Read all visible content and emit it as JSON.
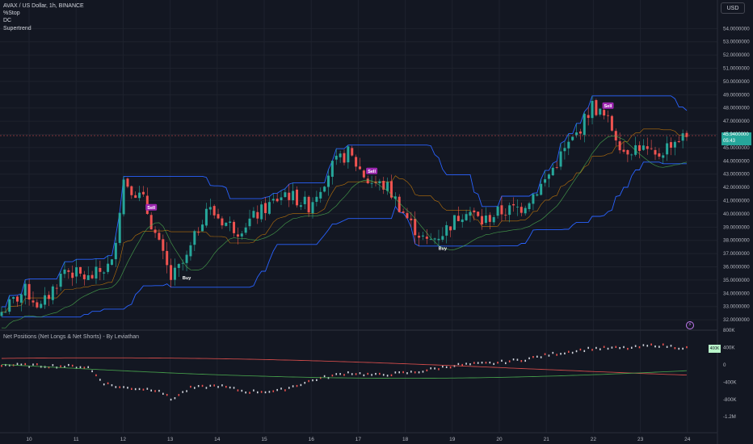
{
  "legend": {
    "symbol_line": "AVAX / US Dollar, 1h, BINANCE",
    "ind1": "%Stop",
    "ind2": "DC",
    "ind3": "Supertrend"
  },
  "currency_label": "USD",
  "price_axis": {
    "ticks": [
      "54.0000000",
      "53.0000000",
      "52.0000000",
      "51.0000000",
      "50.0000000",
      "49.0000000",
      "48.0000000",
      "47.0000000",
      "46.0000000",
      "45.0000000",
      "44.0000000",
      "43.0000000",
      "42.0000000",
      "41.0000000",
      "40.0000000",
      "39.0000000",
      "38.0000000",
      "37.0000000",
      "36.0000000",
      "35.0000000",
      "34.0000000",
      "33.0000000",
      "32.0000000"
    ],
    "current_price": "45.9400000",
    "countdown": "05:43"
  },
  "sub_axis": {
    "title": "Net Positions (Net Longs & Net Shorts) - By Leviathan",
    "ticks": [
      "800K",
      "400K",
      "0",
      "-400K",
      "-800K",
      "-1.2M"
    ],
    "last_label": "400K"
  },
  "time_axis": [
    "10",
    "11",
    "12",
    "13",
    "14",
    "15",
    "16",
    "17",
    "18",
    "19",
    "20",
    "21",
    "22",
    "23",
    "24"
  ],
  "signals": [
    {
      "text": "Sell",
      "kind": "sell"
    },
    {
      "text": "Buy",
      "kind": "buy"
    },
    {
      "text": "Sell",
      "kind": "sell"
    },
    {
      "text": "Buy",
      "kind": "buy"
    },
    {
      "text": "Sell",
      "kind": "sell"
    }
  ],
  "colors": {
    "background": "#131722",
    "up": "#26a69a",
    "down": "#ef5350",
    "dc_band": "#2962ff",
    "supertrend_up": "#4caf50",
    "supertrend_down": "#ff9800",
    "sell_badge": "#9c27b0",
    "net_longs": "#ef5350",
    "net_shorts": "#4caf50"
  },
  "chart_data": {
    "type": "line",
    "ylabel": "",
    "price_ylim": [
      31.5,
      55
    ],
    "anchors_close": [
      [
        0,
        32.6
      ],
      [
        6,
        34.2
      ],
      [
        10,
        32.9
      ],
      [
        16,
        35.8
      ],
      [
        22,
        35.1
      ],
      [
        28,
        36.2
      ],
      [
        31,
        42.6
      ],
      [
        36,
        41.0
      ],
      [
        40,
        37.6
      ],
      [
        43,
        35.1
      ],
      [
        47,
        36.6
      ],
      [
        52,
        40.5
      ],
      [
        56,
        39.5
      ],
      [
        60,
        38.8
      ],
      [
        66,
        40.2
      ],
      [
        72,
        41.6
      ],
      [
        78,
        40.6
      ],
      [
        84,
        43.6
      ],
      [
        88,
        44.6
      ],
      [
        93,
        42.5
      ],
      [
        98,
        42.0
      ],
      [
        104,
        39.2
      ],
      [
        108,
        37.8
      ],
      [
        112,
        38.6
      ],
      [
        118,
        40.4
      ],
      [
        122,
        39.4
      ],
      [
        126,
        40.1
      ],
      [
        132,
        40.5
      ],
      [
        138,
        42.5
      ],
      [
        142,
        44.4
      ],
      [
        146,
        46.0
      ],
      [
        150,
        48.2
      ],
      [
        154,
        47.0
      ],
      [
        158,
        44.8
      ],
      [
        162,
        45.1
      ],
      [
        166,
        44.2
      ],
      [
        170,
        45.4
      ],
      [
        174,
        45.9
      ]
    ],
    "net_anchors": [
      [
        0,
        0
      ],
      [
        20,
        -40
      ],
      [
        22,
        -60
      ],
      [
        26,
        -420
      ],
      [
        30,
        -520
      ],
      [
        40,
        -580
      ],
      [
        43,
        -800
      ],
      [
        48,
        -540
      ],
      [
        55,
        -480
      ],
      [
        62,
        -620
      ],
      [
        70,
        -610
      ],
      [
        80,
        -330
      ],
      [
        88,
        -180
      ],
      [
        95,
        -240
      ],
      [
        105,
        -170
      ],
      [
        115,
        -10
      ],
      [
        125,
        40
      ],
      [
        133,
        130
      ],
      [
        140,
        250
      ],
      [
        150,
        380
      ],
      [
        160,
        390
      ],
      [
        166,
        460
      ],
      [
        174,
        390
      ]
    ],
    "net_ylim": [
      -1250,
      850
    ]
  }
}
